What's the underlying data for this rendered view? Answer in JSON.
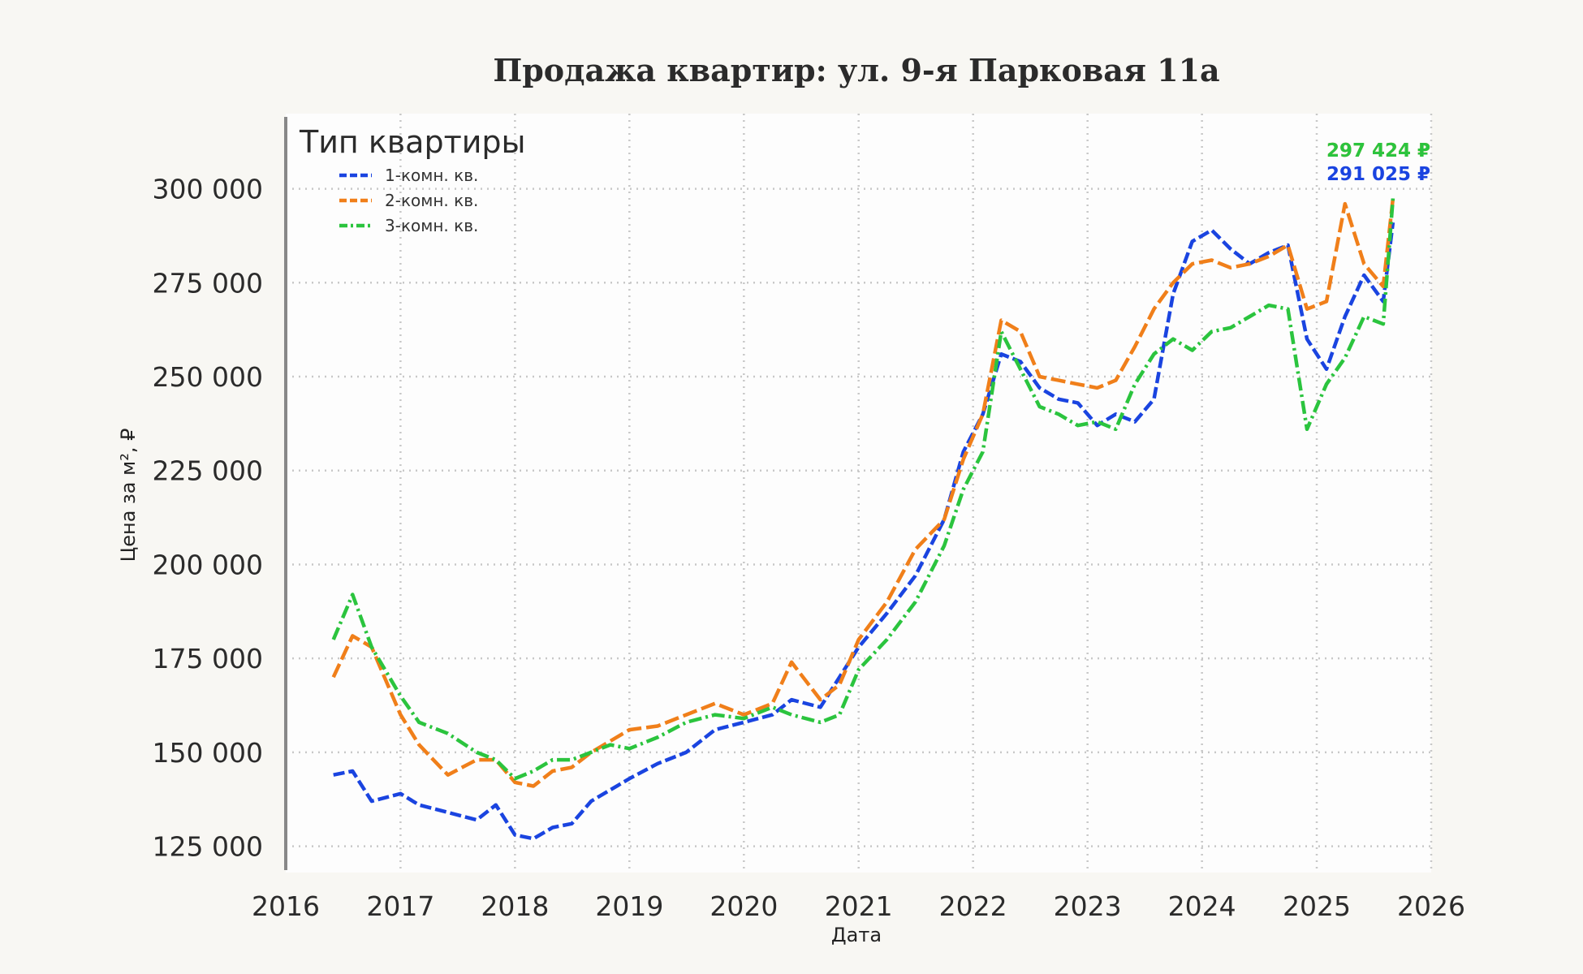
{
  "chart_data": {
    "type": "line",
    "title": "Продажа квартир: ул. 9-я Парковая 11а",
    "xlabel": "Дата",
    "ylabel": "Цена за м², ₽",
    "xlim": [
      "2016-01-01",
      "2026-01-01"
    ],
    "ylim": [
      118000,
      320000
    ],
    "x_ticks": [
      "2016",
      "2017",
      "2018",
      "2019",
      "2020",
      "2021",
      "2022",
      "2023",
      "2024",
      "2025",
      "2026"
    ],
    "y_ticks": [
      {
        "value": 125000,
        "label": "125 000"
      },
      {
        "value": 150000,
        "label": "150 000"
      },
      {
        "value": 175000,
        "label": "175 000"
      },
      {
        "value": 200000,
        "label": "200 000"
      },
      {
        "value": 225000,
        "label": "225 000"
      },
      {
        "value": 250000,
        "label": "250 000"
      },
      {
        "value": 275000,
        "label": "275 000"
      },
      {
        "value": 300000,
        "label": "300 000"
      }
    ],
    "grid": true,
    "legend": {
      "title": "Тип квартиры",
      "position": "top-left"
    },
    "series": [
      {
        "name": "1-комн. кв.",
        "color": "#1a44e0",
        "dash": "14 5",
        "end_label": "291 025 ₽",
        "points": [
          [
            "2016-06-01",
            144000
          ],
          [
            "2016-08-01",
            145000
          ],
          [
            "2016-10-01",
            137000
          ],
          [
            "2017-01-01",
            139000
          ],
          [
            "2017-03-01",
            136000
          ],
          [
            "2017-06-01",
            134000
          ],
          [
            "2017-09-01",
            132000
          ],
          [
            "2017-11-01",
            136000
          ],
          [
            "2018-01-01",
            128000
          ],
          [
            "2018-03-01",
            127000
          ],
          [
            "2018-05-01",
            130000
          ],
          [
            "2018-07-01",
            131000
          ],
          [
            "2018-09-01",
            137000
          ],
          [
            "2018-11-01",
            140000
          ],
          [
            "2019-01-01",
            143000
          ],
          [
            "2019-04-01",
            147000
          ],
          [
            "2019-07-01",
            150000
          ],
          [
            "2019-10-01",
            156000
          ],
          [
            "2020-01-01",
            158000
          ],
          [
            "2020-04-01",
            160000
          ],
          [
            "2020-06-01",
            164000
          ],
          [
            "2020-09-01",
            162000
          ],
          [
            "2020-11-01",
            170000
          ],
          [
            "2021-01-01",
            178000
          ],
          [
            "2021-04-01",
            187000
          ],
          [
            "2021-07-01",
            197000
          ],
          [
            "2021-10-01",
            212000
          ],
          [
            "2021-12-01",
            230000
          ],
          [
            "2022-02-01",
            240000
          ],
          [
            "2022-04-01",
            256000
          ],
          [
            "2022-06-01",
            254000
          ],
          [
            "2022-08-01",
            247000
          ],
          [
            "2022-10-01",
            244000
          ],
          [
            "2022-12-01",
            243000
          ],
          [
            "2023-02-01",
            237000
          ],
          [
            "2023-04-01",
            240000
          ],
          [
            "2023-06-01",
            238000
          ],
          [
            "2023-08-01",
            244000
          ],
          [
            "2023-10-01",
            272000
          ],
          [
            "2023-12-01",
            286000
          ],
          [
            "2024-02-01",
            289000
          ],
          [
            "2024-04-01",
            284000
          ],
          [
            "2024-06-01",
            280000
          ],
          [
            "2024-08-01",
            283000
          ],
          [
            "2024-10-01",
            285000
          ],
          [
            "2024-12-01",
            260000
          ],
          [
            "2025-02-01",
            252000
          ],
          [
            "2025-04-01",
            266000
          ],
          [
            "2025-06-01",
            277000
          ],
          [
            "2025-08-01",
            270000
          ],
          [
            "2025-09-01",
            291025
          ]
        ]
      },
      {
        "name": "2-комн. кв.",
        "color": "#f07f1a",
        "dash": "18 6",
        "end_label": "297 424 ₽",
        "points": [
          [
            "2016-06-01",
            170000
          ],
          [
            "2016-08-01",
            181000
          ],
          [
            "2016-10-01",
            178000
          ],
          [
            "2017-01-01",
            160000
          ],
          [
            "2017-03-01",
            152000
          ],
          [
            "2017-06-01",
            144000
          ],
          [
            "2017-09-01",
            148000
          ],
          [
            "2017-11-01",
            148000
          ],
          [
            "2018-01-01",
            142000
          ],
          [
            "2018-03-01",
            141000
          ],
          [
            "2018-05-01",
            145000
          ],
          [
            "2018-07-01",
            146000
          ],
          [
            "2018-09-01",
            150000
          ],
          [
            "2018-11-01",
            153000
          ],
          [
            "2019-01-01",
            156000
          ],
          [
            "2019-04-01",
            157000
          ],
          [
            "2019-07-01",
            160000
          ],
          [
            "2019-10-01",
            163000
          ],
          [
            "2020-01-01",
            160000
          ],
          [
            "2020-04-01",
            163000
          ],
          [
            "2020-06-01",
            174000
          ],
          [
            "2020-09-01",
            164000
          ],
          [
            "2020-11-01",
            168000
          ],
          [
            "2021-01-01",
            180000
          ],
          [
            "2021-04-01",
            190000
          ],
          [
            "2021-07-01",
            204000
          ],
          [
            "2021-10-01",
            212000
          ],
          [
            "2021-12-01",
            228000
          ],
          [
            "2022-02-01",
            240000
          ],
          [
            "2022-04-01",
            265000
          ],
          [
            "2022-06-01",
            262000
          ],
          [
            "2022-08-01",
            250000
          ],
          [
            "2022-10-01",
            249000
          ],
          [
            "2022-12-01",
            248000
          ],
          [
            "2023-02-01",
            247000
          ],
          [
            "2023-04-01",
            249000
          ],
          [
            "2023-06-01",
            258000
          ],
          [
            "2023-08-01",
            268000
          ],
          [
            "2023-10-01",
            275000
          ],
          [
            "2023-12-01",
            280000
          ],
          [
            "2024-02-01",
            281000
          ],
          [
            "2024-04-01",
            279000
          ],
          [
            "2024-06-01",
            280000
          ],
          [
            "2024-08-01",
            282000
          ],
          [
            "2024-10-01",
            285000
          ],
          [
            "2024-12-01",
            268000
          ],
          [
            "2025-02-01",
            270000
          ],
          [
            "2025-04-01",
            296000
          ],
          [
            "2025-06-01",
            280000
          ],
          [
            "2025-08-01",
            274000
          ],
          [
            "2025-09-01",
            297424
          ]
        ]
      },
      {
        "name": "3-комн. кв.",
        "color": "#2bc43e",
        "dash": "16 5 3 5",
        "end_label": "297 424 ₽",
        "points": [
          [
            "2016-06-01",
            180000
          ],
          [
            "2016-08-01",
            192000
          ],
          [
            "2016-10-01",
            178000
          ],
          [
            "2017-01-01",
            165000
          ],
          [
            "2017-03-01",
            158000
          ],
          [
            "2017-06-01",
            155000
          ],
          [
            "2017-09-01",
            150000
          ],
          [
            "2017-11-01",
            148000
          ],
          [
            "2018-01-01",
            143000
          ],
          [
            "2018-03-01",
            145000
          ],
          [
            "2018-05-01",
            148000
          ],
          [
            "2018-07-01",
            148000
          ],
          [
            "2018-09-01",
            150000
          ],
          [
            "2018-11-01",
            152000
          ],
          [
            "2019-01-01",
            151000
          ],
          [
            "2019-04-01",
            154000
          ],
          [
            "2019-07-01",
            158000
          ],
          [
            "2019-10-01",
            160000
          ],
          [
            "2020-01-01",
            159000
          ],
          [
            "2020-04-01",
            162000
          ],
          [
            "2020-06-01",
            160000
          ],
          [
            "2020-09-01",
            158000
          ],
          [
            "2020-11-01",
            160000
          ],
          [
            "2021-01-01",
            172000
          ],
          [
            "2021-04-01",
            180000
          ],
          [
            "2021-07-01",
            190000
          ],
          [
            "2021-10-01",
            205000
          ],
          [
            "2021-12-01",
            220000
          ],
          [
            "2022-02-01",
            230000
          ],
          [
            "2022-04-01",
            262000
          ],
          [
            "2022-06-01",
            252000
          ],
          [
            "2022-08-01",
            242000
          ],
          [
            "2022-10-01",
            240000
          ],
          [
            "2022-12-01",
            237000
          ],
          [
            "2023-02-01",
            238000
          ],
          [
            "2023-04-01",
            236000
          ],
          [
            "2023-06-01",
            248000
          ],
          [
            "2023-08-01",
            256000
          ],
          [
            "2023-10-01",
            260000
          ],
          [
            "2023-12-01",
            257000
          ],
          [
            "2024-02-01",
            262000
          ],
          [
            "2024-04-01",
            263000
          ],
          [
            "2024-06-01",
            266000
          ],
          [
            "2024-08-01",
            269000
          ],
          [
            "2024-10-01",
            268000
          ],
          [
            "2024-12-01",
            236000
          ],
          [
            "2025-02-01",
            248000
          ],
          [
            "2025-04-01",
            255000
          ],
          [
            "2025-06-01",
            266000
          ],
          [
            "2025-08-01",
            264000
          ],
          [
            "2025-09-01",
            297424
          ]
        ]
      }
    ]
  }
}
